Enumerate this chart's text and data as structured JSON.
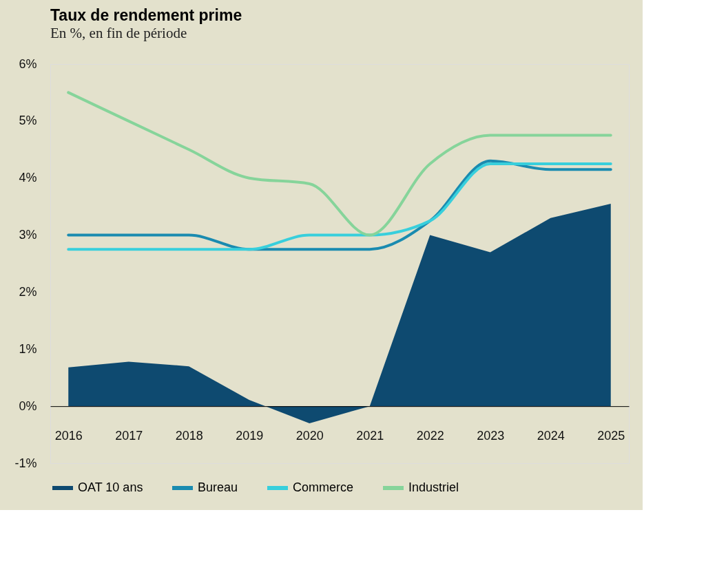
{
  "chart_data": {
    "type": "line",
    "title": "Taux de rendement prime",
    "subtitle": "En %, en fin de période",
    "categories": [
      "2016",
      "2017",
      "2018",
      "2019",
      "2020",
      "2021",
      "2022",
      "2023",
      "2024",
      "2025"
    ],
    "series": [
      {
        "name": "OAT 10 ans",
        "type": "area",
        "color": "#0e4a70",
        "values": [
          0.68,
          0.78,
          0.7,
          0.11,
          -0.3,
          0.0,
          3.0,
          2.7,
          3.3,
          3.55
        ]
      },
      {
        "name": "Bureau",
        "color": "#1a8bb0",
        "values": [
          3.0,
          3.0,
          3.0,
          2.75,
          2.75,
          2.75,
          3.25,
          4.3,
          4.15,
          4.15
        ]
      },
      {
        "name": "Commerce",
        "color": "#38cfdc",
        "values": [
          2.75,
          2.75,
          2.75,
          2.75,
          3.0,
          3.0,
          3.25,
          4.25,
          4.25,
          4.25
        ]
      },
      {
        "name": "Industriel",
        "color": "#86d49a",
        "values": [
          5.5,
          5.0,
          4.5,
          4.0,
          3.9,
          3.0,
          4.25,
          4.75,
          4.75,
          4.75
        ]
      }
    ],
    "ylim": [
      -1,
      6
    ],
    "yticks": [
      {
        "value": -1,
        "label": "-1%"
      },
      {
        "value": 0,
        "label": "0%"
      },
      {
        "value": 1,
        "label": "1%"
      },
      {
        "value": 2,
        "label": "2%"
      },
      {
        "value": 3,
        "label": "3%"
      },
      {
        "value": 4,
        "label": "4%"
      },
      {
        "value": 5,
        "label": "5%"
      },
      {
        "value": 6,
        "label": "6%"
      }
    ],
    "grid": false,
    "legend": "bottom",
    "line_style": "solid",
    "marker": "none"
  }
}
